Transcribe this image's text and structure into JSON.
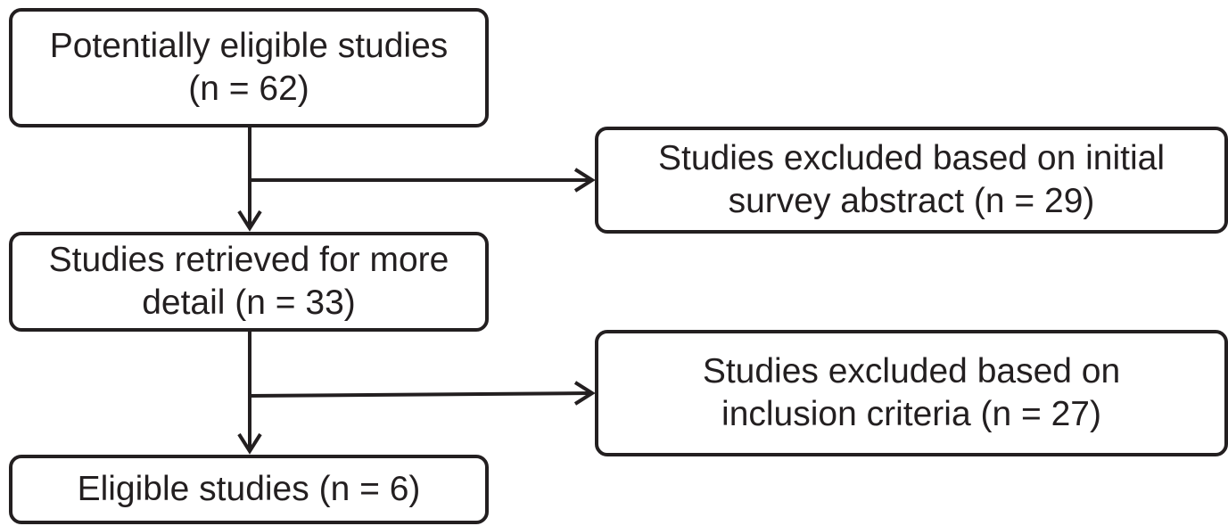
{
  "flowchart": {
    "boxes": [
      {
        "id": "potentially-eligible",
        "lines": [
          "Potentially eligible studies",
          "(n = 62)"
        ]
      },
      {
        "id": "excluded-abstract",
        "lines": [
          "Studies excluded based on initial",
          "survey abstract (n = 29)"
        ]
      },
      {
        "id": "retrieved",
        "lines": [
          "Studies retrieved for more",
          "detail (n = 33)"
        ]
      },
      {
        "id": "excluded-inclusion",
        "lines": [
          "Studies excluded based on",
          "inclusion criteria (n = 27)"
        ]
      },
      {
        "id": "eligible",
        "lines": [
          "Eligible studies (n = 6)"
        ]
      }
    ],
    "colors": {
      "stroke": "#231f20",
      "background": "#ffffff"
    }
  }
}
